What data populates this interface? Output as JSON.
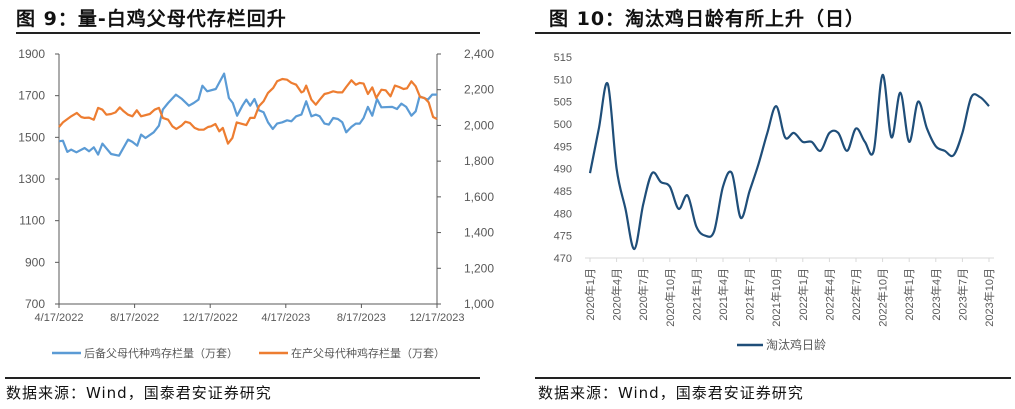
{
  "left": {
    "title": "图 9：量-白鸡父母代存栏回升",
    "source": "数据来源：Wind，国泰君安证券研究"
  },
  "right": {
    "title": "图 10：淘汰鸡日龄有所上升（日）",
    "source": "数据来源：Wind，国泰君安证券研究"
  },
  "chart_data": [
    {
      "type": "line",
      "title": "图 9：量-白鸡父母代存栏回升",
      "x_unit": "weeks since 4/17/2022",
      "xlim": [
        0,
        87
      ],
      "x_ticks": [
        {
          "x": 0,
          "label": "4/17/2022"
        },
        {
          "x": 17.4,
          "label": "8/17/2022"
        },
        {
          "x": 34.8,
          "label": "12/17/2022"
        },
        {
          "x": 52.2,
          "label": "4/17/2023"
        },
        {
          "x": 69.6,
          "label": "8/17/2023"
        },
        {
          "x": 87,
          "label": "12/17/2023"
        }
      ],
      "y_left": {
        "lim": [
          700,
          1900
        ],
        "ticks": [
          "700",
          "900",
          "1100",
          "1300",
          "1500",
          "1700",
          "1900"
        ]
      },
      "y_right": {
        "lim": [
          1000,
          2400
        ],
        "ticks": [
          "1,000",
          "1,200",
          "1,400",
          "1,600",
          "1,800",
          "2,000",
          "2,200",
          "2,400"
        ]
      },
      "legend_position": "bottom",
      "series": [
        {
          "name": "后备父母代种鸡存栏量（万套）",
          "axis": "left",
          "color": "#5B9BD5",
          "x": [
            0,
            0.9,
            1.9,
            2.8,
            4,
            5.9,
            6.9,
            8,
            9,
            10,
            12,
            13.8,
            15.9,
            16.9,
            18,
            18.9,
            19.9,
            21.8,
            23,
            23.9,
            25.1,
            26.9,
            28.2,
            29.9,
            31,
            32.1,
            33,
            34.1,
            36.1,
            38,
            39.1,
            40,
            41,
            42.2,
            43.1,
            44,
            45,
            46,
            47.1,
            48.1,
            49.2,
            50.2,
            51.4,
            52.5,
            53.5,
            54.6,
            55.8,
            56.9,
            58.1,
            59.1,
            60,
            61.1,
            62.1,
            63.1,
            64.2,
            65.2,
            66.1,
            67.3,
            68.3,
            69.2,
            70.1,
            71.1,
            72.1,
            73.2,
            74.2,
            76.7,
            77.8,
            78.8,
            79.9,
            81.1,
            82.1,
            83,
            84.9,
            85.9,
            87
          ],
          "y": [
            1481,
            1484,
            1430,
            1441,
            1428,
            1449,
            1433,
            1452,
            1417,
            1470,
            1420,
            1412,
            1489,
            1478,
            1460,
            1513,
            1497,
            1524,
            1556,
            1633,
            1665,
            1705,
            1686,
            1652,
            1665,
            1681,
            1748,
            1721,
            1732,
            1806,
            1689,
            1665,
            1604,
            1652,
            1681,
            1652,
            1684,
            1630,
            1620,
            1572,
            1540,
            1566,
            1572,
            1582,
            1577,
            1601,
            1609,
            1673,
            1601,
            1609,
            1601,
            1566,
            1561,
            1593,
            1588,
            1572,
            1524,
            1550,
            1566,
            1566,
            1593,
            1646,
            1604,
            1684,
            1644,
            1646,
            1636,
            1662,
            1646,
            1604,
            1625,
            1697,
            1681,
            1705,
            1705
          ]
        },
        {
          "name": "在产父母代种鸡存栏量（万套）",
          "axis": "right",
          "color": "#ED7D31",
          "x": [
            0,
            0.9,
            2.8,
            4.1,
            5.1,
            5.9,
            6.9,
            8,
            9,
            10,
            10.9,
            12,
            13,
            14,
            14.9,
            15.9,
            16.9,
            17.9,
            18.9,
            20.9,
            22,
            23,
            23.9,
            25.1,
            26.1,
            27,
            28.2,
            29.1,
            30.1,
            31.2,
            32.2,
            33.3,
            34.3,
            35,
            36,
            36.9,
            37.7,
            38.9,
            39.9,
            40.9,
            43.1,
            44,
            45,
            46,
            47.1,
            48.1,
            49.3,
            50.2,
            51.4,
            52.5,
            53.5,
            54.6,
            55.8,
            56.3,
            56.9,
            58.1,
            59.1,
            60,
            61.1,
            62.1,
            63.1,
            64.2,
            65.2,
            66.1,
            67.3,
            68.3,
            69.2,
            70.1,
            71.1,
            72.1,
            73,
            74.2,
            75.2,
            76.3,
            77.3,
            78.3,
            79.3,
            80.1,
            81.1,
            82.1,
            83.1,
            84.1,
            85.1,
            86.1,
            87
          ],
          "y": [
            1991,
            2017,
            2051,
            2070,
            2047,
            2042,
            2044,
            2032,
            2098,
            2088,
            2060,
            2064,
            2073,
            2101,
            2079,
            2060,
            2051,
            2085,
            2051,
            2064,
            2088,
            2098,
            2042,
            2032,
            1995,
            1980,
            1999,
            2021,
            2014,
            1986,
            1976,
            1976,
            1991,
            1995,
            2008,
            1967,
            1986,
            1898,
            1930,
            2017,
            2002,
            2042,
            2042,
            2107,
            2135,
            2182,
            2210,
            2247,
            2260,
            2256,
            2238,
            2228,
            2185,
            2191,
            2223,
            2144,
            2116,
            2144,
            2176,
            2182,
            2191,
            2185,
            2185,
            2215,
            2253,
            2228,
            2238,
            2234,
            2176,
            2213,
            2154,
            2200,
            2197,
            2163,
            2223,
            2215,
            2204,
            2208,
            2247,
            2219,
            2159,
            2154,
            2129,
            2047,
            2036
          ]
        }
      ]
    },
    {
      "type": "line",
      "title": "图 10：淘汰鸡日龄有所上升（日）",
      "ylim": [
        470,
        515
      ],
      "y_ticks": [
        "470",
        "475",
        "480",
        "485",
        "490",
        "495",
        "500",
        "505",
        "510",
        "515"
      ],
      "x_tick_labels": [
        "2020年1月",
        "2020年4月",
        "2020年7月",
        "2020年10月",
        "2021年1月",
        "2021年4月",
        "2021年7月",
        "2021年10月",
        "2022年1月",
        "2022年4月",
        "2022年7月",
        "2022年10月",
        "2023年1月",
        "2023年4月",
        "2023年7月",
        "2023年10月"
      ],
      "legend_position": "bottom",
      "series": [
        {
          "name": "淘汰鸡日龄",
          "color": "#1F4E79",
          "values": [
            489,
            499,
            509,
            490,
            481,
            472,
            482,
            489,
            487,
            486,
            481,
            484,
            477,
            475,
            476,
            486,
            489,
            479,
            485,
            491,
            498,
            504,
            497,
            498,
            496,
            496,
            494,
            498,
            498,
            494,
            499,
            496,
            494,
            511,
            497,
            507,
            496,
            505,
            499,
            495,
            494,
            493,
            498,
            506,
            506,
            504
          ]
        }
      ]
    }
  ]
}
